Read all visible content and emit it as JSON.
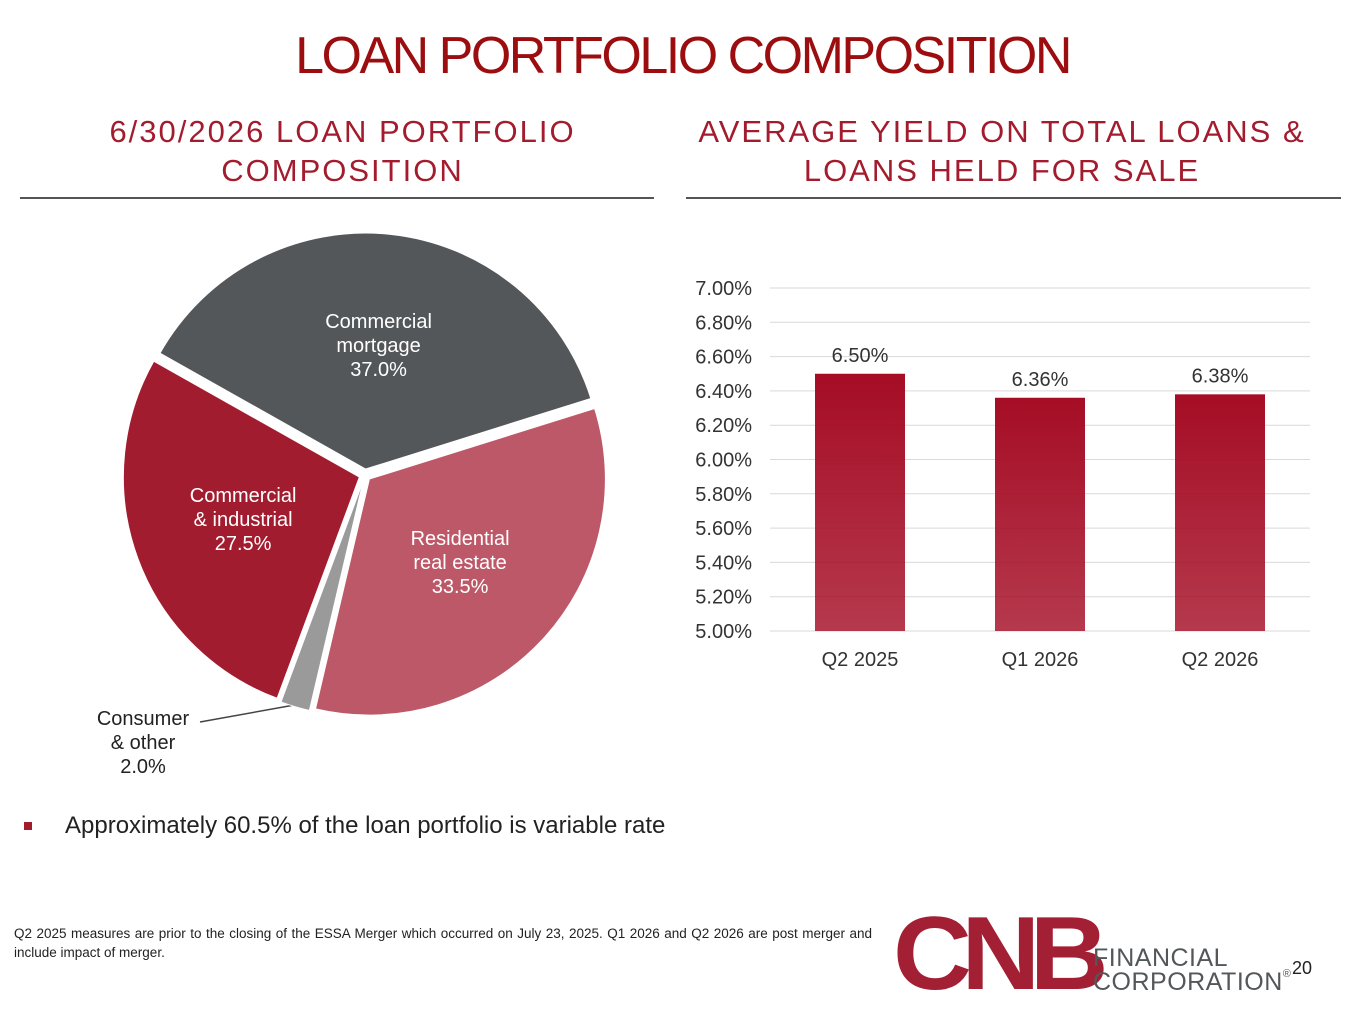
{
  "title": "LOAN PORTFOLIO COMPOSITION",
  "chart_data": [
    {
      "type": "pie",
      "title": "6/30/2026 LOAN PORTFOLIO COMPOSITION",
      "categories": [
        "Commercial mortgage",
        "Residential real estate",
        "Consumer & other",
        "Commercial & industrial"
      ],
      "values": [
        37.0,
        33.5,
        2.0,
        27.5
      ],
      "value_labels": [
        "37.0%",
        "33.5%",
        "2.0%",
        "27.5%"
      ],
      "colors": [
        "#54575a",
        "#bd5868",
        "#9a9a9a",
        "#a21c30"
      ]
    },
    {
      "type": "bar",
      "title": "AVERAGE YIELD ON TOTAL LOANS & LOANS HELD FOR SALE",
      "categories": [
        "Q2 2025",
        "Q1 2026",
        "Q2 2026"
      ],
      "values": [
        6.5,
        6.36,
        6.38
      ],
      "value_labels": [
        "6.50%",
        "6.36%",
        "6.38%"
      ],
      "color": "#a50d25",
      "ylim": [
        5.0,
        7.0
      ],
      "yticks": [
        {
          "value": 5.0,
          "label": "5.00%"
        },
        {
          "value": 5.2,
          "label": "5.20%"
        },
        {
          "value": 5.4,
          "label": "5.40%"
        },
        {
          "value": 5.6,
          "label": "5.60%"
        },
        {
          "value": 5.8,
          "label": "5.80%"
        },
        {
          "value": 6.0,
          "label": "6.00%"
        },
        {
          "value": 6.2,
          "label": "6.20%"
        },
        {
          "value": 6.4,
          "label": "6.40%"
        },
        {
          "value": 6.6,
          "label": "6.60%"
        },
        {
          "value": 6.8,
          "label": "6.80%"
        },
        {
          "value": 7.0,
          "label": "7.00%"
        }
      ],
      "grid": true
    }
  ],
  "bullet": "Approximately 60.5% of the loan portfolio is variable rate",
  "footnote": "Q2 2025 measures are prior to the closing of the ESSA Merger which occurred on July 23, 2025. Q1 2026 and Q2 2026 are post merger and include impact of merger.",
  "logo": {
    "brand": "CNB",
    "line1": "FINANCIAL",
    "line2": "CORPORATION",
    "mark": "®"
  },
  "page_number": "20"
}
